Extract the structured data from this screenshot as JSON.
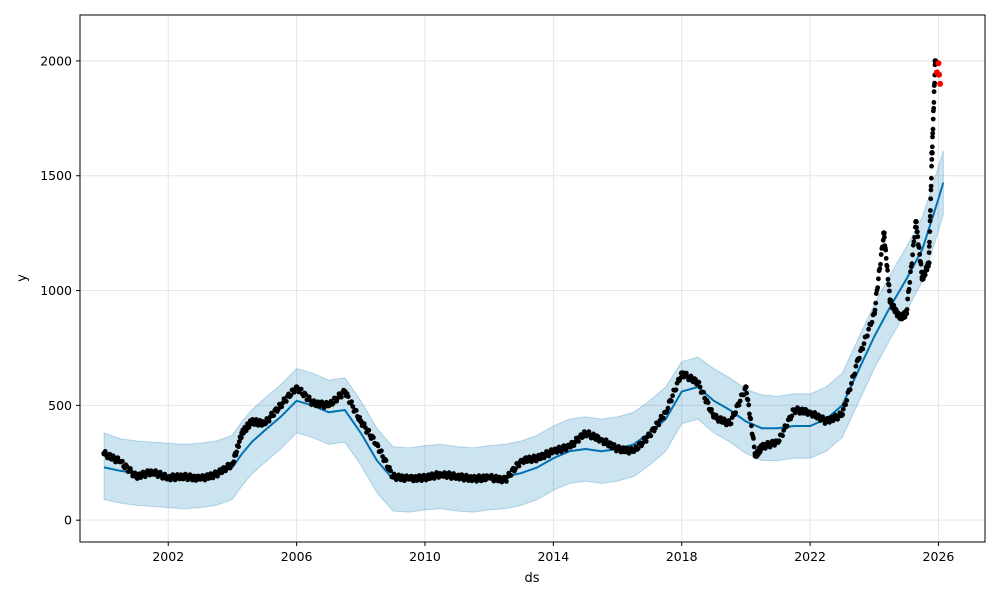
{
  "chart_data": {
    "type": "line",
    "xlabel": "ds",
    "ylabel": "y",
    "x_ticks": [
      "2002",
      "2006",
      "2010",
      "2014",
      "2018",
      "2022",
      "2026"
    ],
    "x_tick_years": [
      2002,
      2006,
      2010,
      2014,
      2018,
      2022,
      2026
    ],
    "y_ticks": [
      0,
      500,
      1000,
      1500,
      2000
    ],
    "xlim": [
      1999.25,
      2027.45
    ],
    "ylim": [
      -95,
      2200
    ],
    "grid": true,
    "colors": {
      "observed": "#000000",
      "forecast": "#0072B2",
      "interval": "#0072B2",
      "highlight": "#ff0000"
    },
    "series": [
      {
        "kind": "forecast",
        "x": [
          2000.0,
          2000.5,
          2001.0,
          2001.5,
          2002.0,
          2002.5,
          2003.0,
          2003.5,
          2004.0,
          2004.3,
          2004.6,
          2005.0,
          2005.5,
          2006.0,
          2006.5,
          2007.0,
          2007.5,
          2008.0,
          2008.5,
          2009.0,
          2009.5,
          2010.0,
          2010.5,
          2011.0,
          2011.5,
          2012.0,
          2012.5,
          2013.0,
          2013.5,
          2014.0,
          2014.5,
          2015.0,
          2015.5,
          2016.0,
          2016.5,
          2017.0,
          2017.5,
          2018.0,
          2018.5,
          2019.0,
          2019.5,
          2020.0,
          2020.5,
          2021.0,
          2021.5,
          2022.0,
          2022.5,
          2023.0,
          2023.5,
          2024.0,
          2024.5,
          2025.0,
          2025.5,
          2026.0,
          2026.15
        ],
        "y": [
          230,
          215,
          205,
          200,
          195,
          190,
          195,
          205,
          230,
          290,
          340,
          390,
          450,
          520,
          500,
          470,
          480,
          380,
          260,
          180,
          175,
          185,
          190,
          180,
          175,
          185,
          190,
          205,
          230,
          270,
          300,
          310,
          300,
          310,
          330,
          380,
          440,
          560,
          580,
          520,
          480,
          430,
          400,
          400,
          410,
          410,
          440,
          500,
          650,
          800,
          930,
          1050,
          1180,
          1400,
          1470
        ],
        "upper": [
          380,
          355,
          345,
          340,
          335,
          330,
          335,
          345,
          370,
          430,
          480,
          530,
          590,
          660,
          640,
          610,
          620,
          520,
          400,
          320,
          315,
          325,
          330,
          320,
          315,
          325,
          330,
          345,
          370,
          410,
          440,
          450,
          440,
          450,
          470,
          520,
          580,
          690,
          710,
          660,
          620,
          570,
          545,
          540,
          550,
          550,
          580,
          640,
          790,
          940,
          1070,
          1190,
          1320,
          1540,
          1610
        ],
        "lower": [
          90,
          75,
          65,
          60,
          55,
          50,
          55,
          65,
          90,
          150,
          200,
          250,
          310,
          380,
          360,
          330,
          340,
          240,
          120,
          40,
          35,
          45,
          50,
          40,
          35,
          45,
          50,
          65,
          90,
          130,
          160,
          170,
          160,
          170,
          190,
          240,
          300,
          420,
          440,
          380,
          340,
          290,
          260,
          260,
          270,
          270,
          300,
          360,
          510,
          660,
          790,
          910,
          1040,
          1260,
          1330
        ]
      },
      {
        "kind": "observed",
        "x": [
          2000.0,
          2000.5,
          2001.0,
          2001.5,
          2002.0,
          2002.5,
          2003.0,
          2003.5,
          2004.0,
          2004.3,
          2004.6,
          2005.0,
          2005.5,
          2006.0,
          2006.5,
          2007.0,
          2007.5,
          2008.0,
          2008.5,
          2009.0,
          2009.5,
          2010.0,
          2010.5,
          2011.0,
          2011.5,
          2012.0,
          2012.5,
          2013.0,
          2013.5,
          2014.0,
          2014.5,
          2015.0,
          2015.5,
          2016.0,
          2016.5,
          2017.0,
          2017.5,
          2018.0,
          2018.5,
          2019.0,
          2019.5,
          2020.0,
          2020.3,
          2020.5,
          2021.0,
          2021.5,
          2022.0,
          2022.5,
          2023.0,
          2023.5,
          2024.0,
          2024.3,
          2024.5,
          2024.8,
          2025.0,
          2025.3,
          2025.5,
          2025.7,
          2025.8,
          2025.9
        ],
        "y": [
          290,
          255,
          190,
          210,
          185,
          190,
          180,
          200,
          245,
          380,
          430,
          420,
          500,
          580,
          510,
          500,
          560,
          430,
          330,
          190,
          180,
          185,
          200,
          190,
          180,
          185,
          175,
          260,
          270,
          300,
          320,
          380,
          350,
          310,
          300,
          370,
          470,
          640,
          600,
          450,
          420,
          580,
          280,
          320,
          340,
          480,
          470,
          430,
          460,
          700,
          900,
          1250,
          950,
          880,
          900,
          1300,
          1050,
          1120,
          1600,
          2000
        ]
      },
      {
        "kind": "highlight",
        "x": [
          2025.95,
          2026.0,
          2026.02,
          2026.05
        ],
        "y": [
          1950,
          1990,
          1940,
          1900
        ]
      }
    ]
  }
}
